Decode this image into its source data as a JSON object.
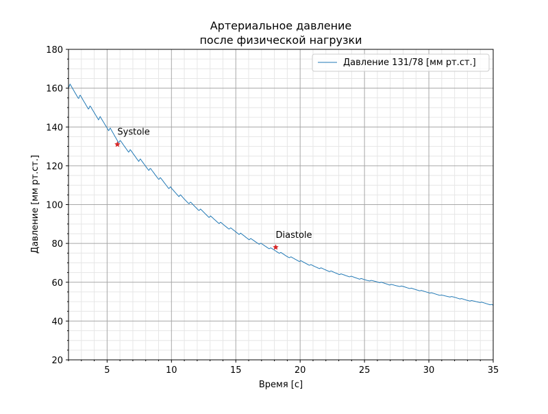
{
  "chart_data": {
    "type": "line",
    "title": [
      "Артериальное давление",
      "после физической нагрузки"
    ],
    "xlabel": "Время [с]",
    "ylabel": "Давление [мм рт.ст.]",
    "xlim": [
      2,
      35
    ],
    "ylim": [
      20,
      180
    ],
    "xticks": [
      5,
      10,
      15,
      20,
      25,
      30,
      35
    ],
    "xtick_labels": [
      "5",
      "10",
      "15",
      "20",
      "25",
      "30",
      "35"
    ],
    "yticks": [
      20,
      40,
      60,
      80,
      100,
      120,
      140,
      160,
      180
    ],
    "ytick_labels": [
      "20",
      "40",
      "60",
      "80",
      "100",
      "120",
      "140",
      "160",
      "180"
    ],
    "x_minor_step": 1,
    "y_minor_step": 5,
    "grid": true,
    "legend": "top-right",
    "series": [
      {
        "name": "Давление 131/78 [мм рт.ст.]",
        "color": "#1f77b4",
        "x": [
          2.0,
          3.0,
          4.0,
          5.0,
          6.0,
          7.0,
          8.0,
          9.0,
          10.0,
          11.0,
          12.0,
          13.0,
          14.0,
          15.0,
          16.0,
          17.0,
          18.0,
          19.0,
          20.0,
          21.0,
          22.0,
          23.0,
          24.0,
          25.0,
          26.0,
          27.0,
          28.0,
          29.0,
          30.0,
          31.0,
          32.0,
          33.0,
          34.0,
          35.0
        ],
        "y": [
          160,
          153,
          146,
          139,
          131,
          125,
          119,
          113,
          107,
          102,
          97.5,
          93,
          89,
          85.5,
          82,
          79,
          76,
          73,
          70.5,
          68,
          66,
          64,
          62.5,
          61,
          60,
          58.5,
          57.5,
          56,
          54.5,
          53,
          52,
          50.5,
          49.5,
          48
        ]
      }
    ],
    "markers": [
      {
        "label": "Systole",
        "x": 5.8,
        "y": 131,
        "color": "#d62728"
      },
      {
        "label": "Diastole",
        "x": 18.1,
        "y": 78,
        "color": "#d62728"
      }
    ]
  }
}
